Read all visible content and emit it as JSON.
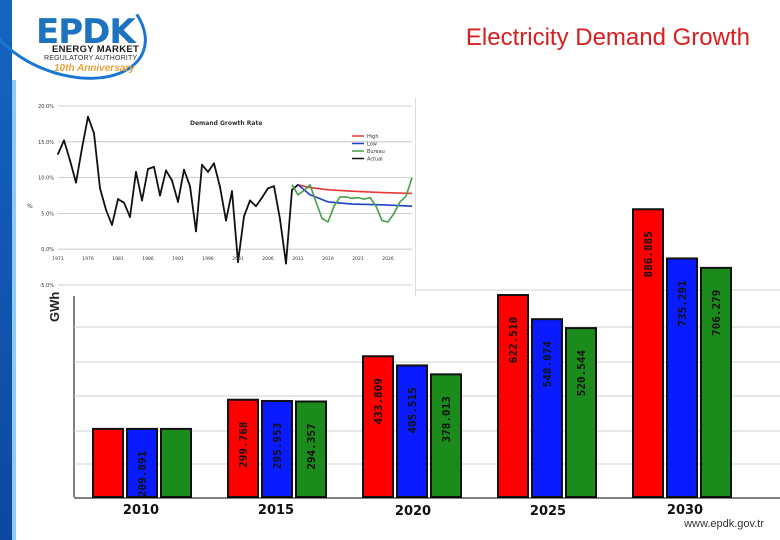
{
  "logo": {
    "brand": "EPDK",
    "line1": "ENERGY MARKET",
    "line2": "REGULATORY AUTHORITY",
    "line3": "10th Anniversary"
  },
  "title": "Electricity Demand Growth",
  "footer": {
    "url": "www.epdk.gov.tr"
  },
  "colors": {
    "red": "#ff0000",
    "blue": "#0a1cff",
    "green": "#1b8c1b",
    "title": "#d81e1e"
  },
  "chart_data": [
    {
      "type": "bar",
      "ylabel": "GWh",
      "categories": [
        "2010",
        "2015",
        "2020",
        "2025",
        "2030"
      ],
      "series": [
        {
          "name": "High",
          "color": "#ff0000",
          "values": [
            209891,
            299768,
            433809,
            622510,
            886885
          ],
          "labels": [
            "",
            "299.768",
            "433.809",
            "622.510",
            "886.885"
          ]
        },
        {
          "name": "Low",
          "color": "#0a1cff",
          "values": [
            209891,
            295953,
            405515,
            548074,
            735291
          ],
          "labels": [
            "209.891",
            "295.953",
            "405.515",
            "548.074",
            "735.291"
          ]
        },
        {
          "name": "Bureau",
          "color": "#1b8c1b",
          "values": [
            209891,
            294357,
            378013,
            520544,
            706279
          ],
          "labels": [
            "",
            "294.357",
            "378.013",
            "520.544",
            "706.279"
          ]
        }
      ],
      "ylim": [
        0,
        900000
      ]
    },
    {
      "type": "line",
      "title": "Demand Growth Rate",
      "ylabel": "%",
      "yticks": [
        "20.0%",
        "15.0%",
        "10.0%",
        "5.0%",
        "0.0%",
        "-5.0%"
      ],
      "ylim": [
        -5,
        20
      ],
      "xticks": [
        "1971",
        "1976",
        "1981",
        "1986",
        "1991",
        "1996",
        "2001",
        "2006",
        "2011",
        "2016",
        "2021",
        "2026"
      ],
      "xlim": [
        1971,
        2030
      ],
      "legend": [
        {
          "name": "High",
          "color": "#e53935"
        },
        {
          "name": "Low",
          "color": "#1e40c8"
        },
        {
          "name": "Bureau",
          "color": "#43a047"
        },
        {
          "name": "Actual",
          "color": "#111111"
        }
      ],
      "series": [
        {
          "name": "Actual",
          "color": "#111111",
          "x": [
            1971,
            1972,
            1973,
            1974,
            1975,
            1976,
            1977,
            1978,
            1979,
            1980,
            1981,
            1982,
            1983,
            1984,
            1985,
            1986,
            1987,
            1988,
            1989,
            1990,
            1991,
            1992,
            1993,
            1994,
            1995,
            1996,
            1997,
            1998,
            1999,
            2000,
            2001,
            2002,
            2003,
            2004,
            2005,
            2006,
            2007,
            2008,
            2009,
            2010,
            2011
          ],
          "y": [
            13.3,
            15.2,
            12.4,
            9.3,
            14.1,
            18.5,
            16.2,
            8.5,
            5.5,
            3.4,
            7.0,
            6.5,
            4.5,
            10.8,
            6.8,
            11.2,
            11.5,
            7.5,
            11.0,
            9.6,
            6.6,
            11.1,
            8.8,
            2.5,
            11.8,
            10.8,
            12.0,
            8.7,
            4.0,
            8.1,
            -1.8,
            4.6,
            6.8,
            6.0,
            7.2,
            8.5,
            8.8,
            4.2,
            -2.0,
            8.3,
            9.0
          ]
        },
        {
          "name": "High",
          "color": "#e53935",
          "x": [
            2011,
            2013,
            2016,
            2020,
            2025,
            2030
          ],
          "y": [
            9.0,
            8.6,
            8.3,
            8.1,
            7.9,
            7.8
          ]
        },
        {
          "name": "Low",
          "color": "#1e40c8",
          "x": [
            2011,
            2013,
            2016,
            2020,
            2025,
            2030
          ],
          "y": [
            9.0,
            7.6,
            6.6,
            6.3,
            6.2,
            6.0
          ]
        },
        {
          "name": "Bureau",
          "color": "#43a047",
          "x": [
            2010,
            2011,
            2012,
            2013,
            2014,
            2015,
            2016,
            2017,
            2018,
            2019,
            2020,
            2021,
            2022,
            2023,
            2024,
            2025,
            2026,
            2027,
            2028,
            2029,
            2030
          ],
          "y": [
            9.0,
            7.6,
            8.2,
            9.0,
            6.6,
            4.3,
            3.8,
            6.0,
            7.3,
            7.3,
            7.1,
            7.2,
            7.0,
            7.2,
            6.0,
            4.0,
            3.8,
            5.0,
            6.6,
            7.4,
            10.0
          ]
        }
      ]
    }
  ]
}
